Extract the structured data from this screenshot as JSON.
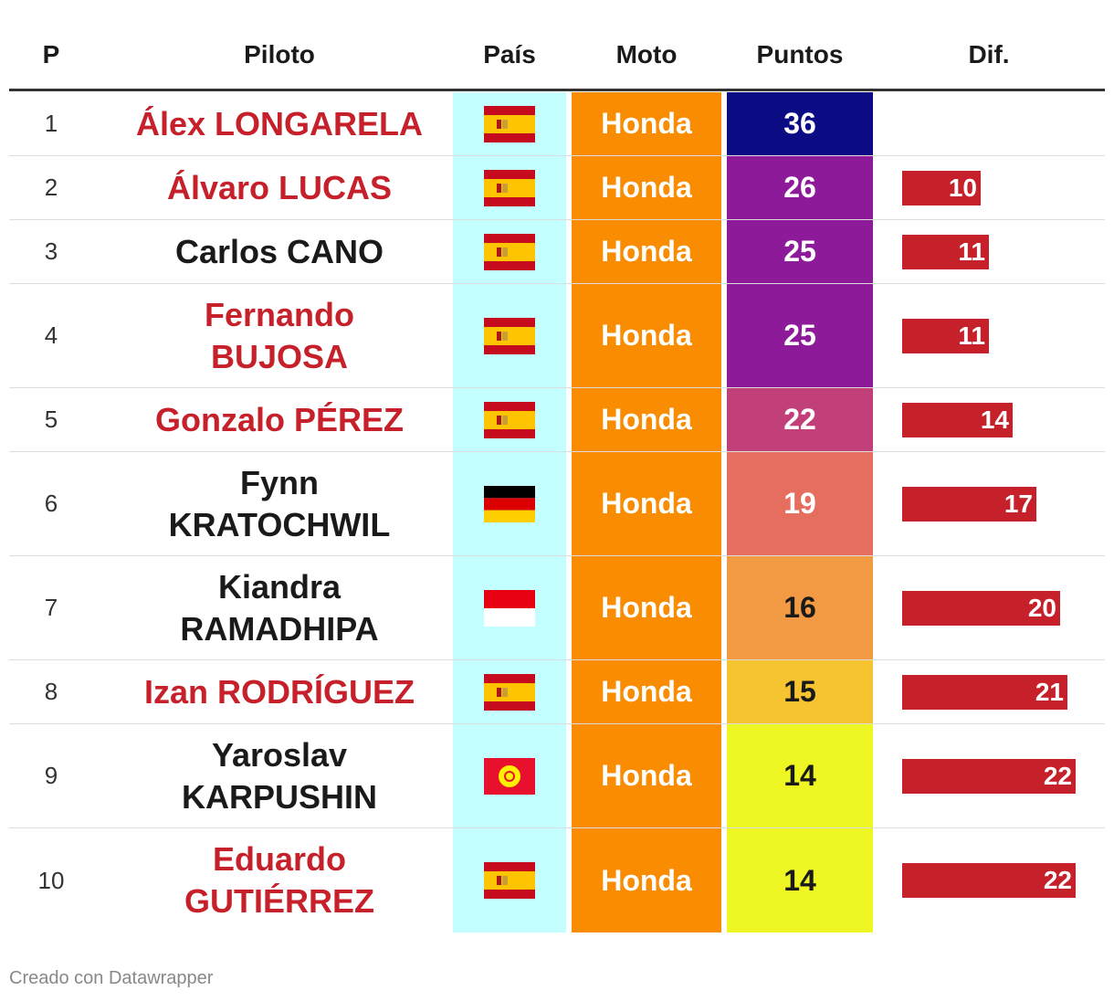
{
  "chart_data": {
    "type": "table",
    "headers": {
      "p": "P",
      "pilot": "Piloto",
      "country": "País",
      "moto": "Moto",
      "points": "Puntos",
      "dif": "Dif."
    },
    "rows": [
      {
        "p": "1",
        "pilot": "Álex LONGARELA",
        "lines": [
          "Álex LONGARELA"
        ],
        "pilot_color": "#c6202a",
        "flag": "spain",
        "moto": "Honda",
        "points": "36",
        "points_num": 36,
        "points_bg": "#0b0b84",
        "points_fg": "#ffffff",
        "dif": "",
        "dif_num": 0
      },
      {
        "p": "2",
        "pilot": "Álvaro LUCAS",
        "lines": [
          "Álvaro LUCAS"
        ],
        "pilot_color": "#c6202a",
        "flag": "spain",
        "moto": "Honda",
        "points": "26",
        "points_num": 26,
        "points_bg": "#8d1a99",
        "points_fg": "#ffffff",
        "dif": "10",
        "dif_num": 10
      },
      {
        "p": "3",
        "pilot": "Carlos CANO",
        "lines": [
          "Carlos CANO"
        ],
        "pilot_color": "#1a1a1a",
        "flag": "spain",
        "moto": "Honda",
        "points": "25",
        "points_num": 25,
        "points_bg": "#8d1a99",
        "points_fg": "#ffffff",
        "dif": "11",
        "dif_num": 11
      },
      {
        "p": "4",
        "pilot": "Fernando BUJOSA",
        "lines": [
          "Fernando",
          "BUJOSA"
        ],
        "pilot_color": "#c6202a",
        "flag": "spain",
        "moto": "Honda",
        "points": "25",
        "points_num": 25,
        "points_bg": "#8d1a99",
        "points_fg": "#ffffff",
        "dif": "11",
        "dif_num": 11
      },
      {
        "p": "5",
        "pilot": "Gonzalo PÉREZ",
        "lines": [
          "Gonzalo PÉREZ"
        ],
        "pilot_color": "#c6202a",
        "flag": "spain",
        "moto": "Honda",
        "points": "22",
        "points_num": 22,
        "points_bg": "#c2407a",
        "points_fg": "#ffffff",
        "dif": "14",
        "dif_num": 14
      },
      {
        "p": "6",
        "pilot": "Fynn KRATOCHWIL",
        "lines": [
          "Fynn",
          "KRATOCHWIL"
        ],
        "pilot_color": "#1a1a1a",
        "flag": "germany",
        "moto": "Honda",
        "points": "19",
        "points_num": 19,
        "points_bg": "#e56e5e",
        "points_fg": "#ffffff",
        "dif": "17",
        "dif_num": 17
      },
      {
        "p": "7",
        "pilot": "Kiandra RAMADHIPA",
        "lines": [
          "Kiandra",
          "RAMADHIPA"
        ],
        "pilot_color": "#1a1a1a",
        "flag": "indonesia",
        "moto": "Honda",
        "points": "16",
        "points_num": 16,
        "points_bg": "#f39a44",
        "points_fg": "#1a1a1a",
        "dif": "20",
        "dif_num": 20
      },
      {
        "p": "8",
        "pilot": "Izan RODRÍGUEZ",
        "lines": [
          "Izan RODRÍGUEZ"
        ],
        "pilot_color": "#c6202a",
        "flag": "spain",
        "moto": "Honda",
        "points": "15",
        "points_num": 15,
        "points_bg": "#f6c430",
        "points_fg": "#1a1a1a",
        "dif": "21",
        "dif_num": 21
      },
      {
        "p": "9",
        "pilot": "Yaroslav KARPUSHIN",
        "lines": [
          "Yaroslav",
          "KARPUSHIN"
        ],
        "pilot_color": "#1a1a1a",
        "flag": "kyrgyzstan",
        "moto": "Honda",
        "points": "14",
        "points_num": 14,
        "points_bg": "#eef723",
        "points_fg": "#1a1a1a",
        "dif": "22",
        "dif_num": 22
      },
      {
        "p": "10",
        "pilot": "Eduardo GUTIÉRREZ",
        "lines": [
          "Eduardo",
          "GUTIÉRREZ"
        ],
        "pilot_color": "#c6202a",
        "flag": "spain",
        "moto": "Honda",
        "points": "14",
        "points_num": 14,
        "points_bg": "#eef723",
        "points_fg": "#1a1a1a",
        "dif": "22",
        "dif_num": 22
      }
    ],
    "dif_max": 22
  },
  "colors": {
    "pilot_red": "#c6202a",
    "moto_bg": "#f98c00",
    "country_bg": "#c4ffff",
    "dif_bar": "#c6202a"
  },
  "footer": "Creado con Datawrapper"
}
